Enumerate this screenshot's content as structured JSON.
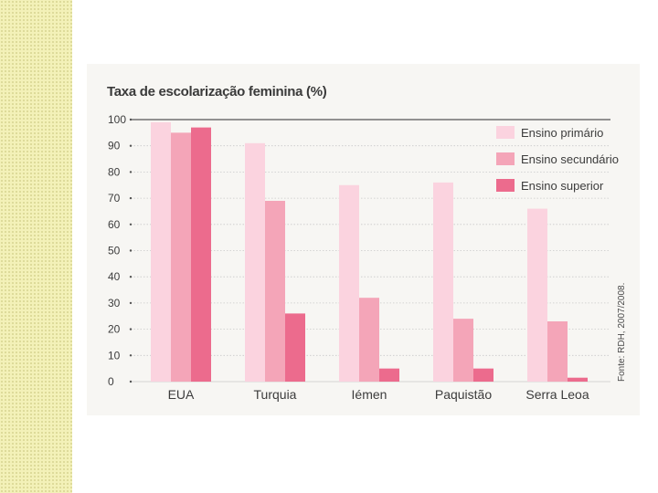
{
  "chart_data": {
    "type": "bar",
    "title": "Taxa de escolarização feminina (%)",
    "categories": [
      "EUA",
      "Turquia",
      "Iémen",
      "Paquistão",
      "Serra Leoa"
    ],
    "series": [
      {
        "name": "Ensino primário",
        "values": [
          99,
          91,
          75,
          76,
          66
        ],
        "color": "#fbd3df"
      },
      {
        "name": "Ensino secundário",
        "values": [
          95,
          69,
          32,
          24,
          23
        ],
        "color": "#f4a5b8"
      },
      {
        "name": "Ensino superior",
        "values": [
          97,
          26,
          5,
          5,
          1.5
        ],
        "color": "#ec6b8d"
      }
    ],
    "yticks": [
      0,
      10,
      20,
      30,
      40,
      50,
      60,
      70,
      80,
      90,
      100
    ],
    "ylim": [
      0,
      100
    ],
    "grid": true,
    "legend": "top-right",
    "source": "Fonte: RDH, 2007/2008."
  }
}
